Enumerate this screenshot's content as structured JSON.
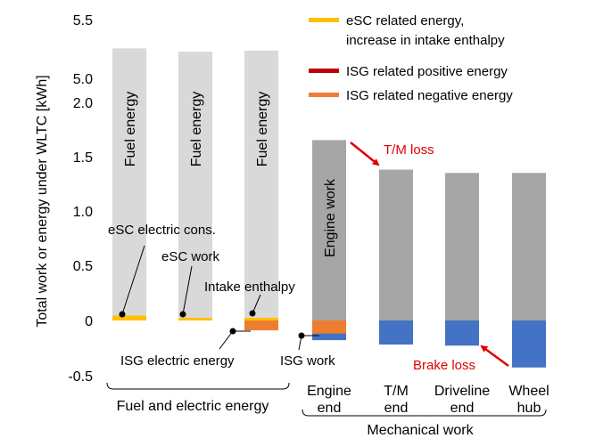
{
  "chart_data": {
    "type": "bar",
    "ylabel": "Total work or energy under WLTC [kWh]",
    "yticks": [
      "5.5",
      "5.0",
      "2.0",
      "1.5",
      "1.0",
      "0.5",
      "0",
      "-0.5"
    ],
    "axis_break": {
      "lower_top": 2.0,
      "upper_bottom": 5.0
    },
    "ylim": [
      -0.5,
      5.5
    ],
    "legend": [
      {
        "label": "eSC related energy,",
        "label2": "increase in intake enthalpy",
        "color": "#ffc000"
      },
      {
        "label": "ISG related positive energy",
        "color": "#c00000"
      },
      {
        "label": "ISG related negative energy",
        "color": "#ed7d31"
      }
    ],
    "bars": [
      {
        "group": "fuel",
        "fuel_total": 5.28,
        "fuel_label": "Fuel energy",
        "esc": 0.045,
        "isg_neg": 0
      },
      {
        "group": "fuel",
        "fuel_total": 5.25,
        "fuel_label": "Fuel energy",
        "esc": 0.02,
        "isg_neg": 0
      },
      {
        "group": "fuel",
        "fuel_total": 5.26,
        "fuel_label": "Fuel energy",
        "esc": 0.015,
        "isg_neg": -0.09
      },
      {
        "group": "mech",
        "positive": 1.65,
        "negative": -0.18,
        "isg_neg": -0.12,
        "inbar_label": "Engine work",
        "category": [
          "Engine",
          "end"
        ]
      },
      {
        "group": "mech",
        "positive": 1.38,
        "negative": -0.22,
        "category": [
          "T/M",
          "end"
        ]
      },
      {
        "group": "mech",
        "positive": 1.35,
        "negative": -0.23,
        "category": [
          "Driveline",
          "end"
        ]
      },
      {
        "group": "mech",
        "positive": 1.35,
        "negative": -0.43,
        "category": [
          "Wheel",
          "hub"
        ]
      }
    ],
    "colors": {
      "fuel": "#d9d9d9",
      "mech_pos": "#a6a6a6",
      "mech_neg": "#4472c4"
    },
    "annotations": {
      "esc_electric": "eSC electric cons.",
      "esc_work": "eSC work",
      "intake_enthalpy": "Intake enthalpy",
      "isg_electric": "ISG electric energy",
      "isg_work": "ISG work",
      "tm_loss": "T/M loss",
      "brake_loss": "Brake loss"
    },
    "groups": {
      "fuel": "Fuel and electric energy",
      "mech": "Mechanical work"
    }
  }
}
